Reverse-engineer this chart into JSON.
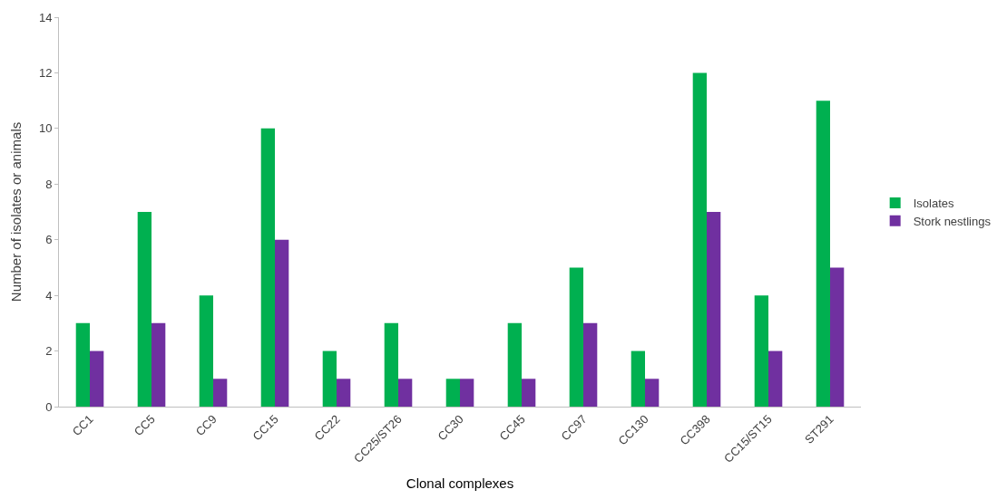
{
  "chart_data": {
    "type": "bar",
    "xlabel": "Clonal complexes",
    "ylabel": "Number of isolates or animals",
    "categories": [
      "CC1",
      "CC5",
      "CC9",
      "CC15",
      "CC22",
      "CC25/ST26",
      "CC30",
      "CC45",
      "CC97",
      "CC130",
      "CC398",
      "CC15/ST15",
      "ST291"
    ],
    "series": [
      {
        "name": "Isolates",
        "color": "#00b050",
        "values": [
          3,
          7,
          4,
          10,
          2,
          3,
          1,
          3,
          5,
          2,
          12,
          4,
          11
        ]
      },
      {
        "name": "Stork nestlings",
        "color": "#7030a0",
        "values": [
          2,
          3,
          1,
          6,
          1,
          1,
          1,
          1,
          3,
          1,
          7,
          2,
          5
        ]
      }
    ],
    "ylim": [
      0,
      14
    ],
    "yticks": [
      0,
      2,
      4,
      6,
      8,
      10,
      12,
      14
    ],
    "legend": "right"
  }
}
